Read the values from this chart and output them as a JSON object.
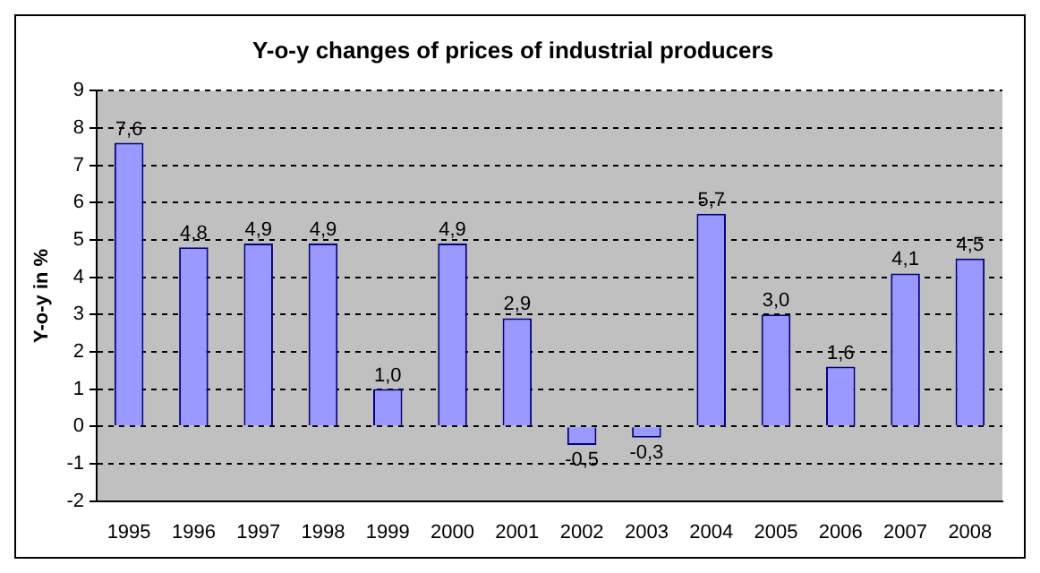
{
  "chart_data": {
    "type": "bar",
    "title": "Y-o-y changes of prices of industrial producers",
    "ylabel": "Y-o-y in %",
    "categories": [
      "1995",
      "1996",
      "1997",
      "1998",
      "1999",
      "2000",
      "2001",
      "2002",
      "2003",
      "2004",
      "2005",
      "2006",
      "2007",
      "2008"
    ],
    "values": [
      7.6,
      4.8,
      4.9,
      4.9,
      1.0,
      4.9,
      2.9,
      -0.5,
      -0.3,
      5.7,
      3.0,
      1.6,
      4.1,
      4.5
    ],
    "value_labels": [
      "7,6",
      "4,8",
      "4,9",
      "4,9",
      "1,0",
      "4,9",
      "2,9",
      "-0,5",
      "-0,3",
      "5,7",
      "3,0",
      "1,6",
      "4,1",
      "4,5"
    ],
    "color": "#9999ff",
    "ylim": [
      -2,
      9
    ],
    "yticks": [
      -2,
      -1,
      0,
      1,
      2,
      3,
      4,
      5,
      6,
      7,
      8,
      9
    ],
    "grid": "y",
    "legend": false
  }
}
